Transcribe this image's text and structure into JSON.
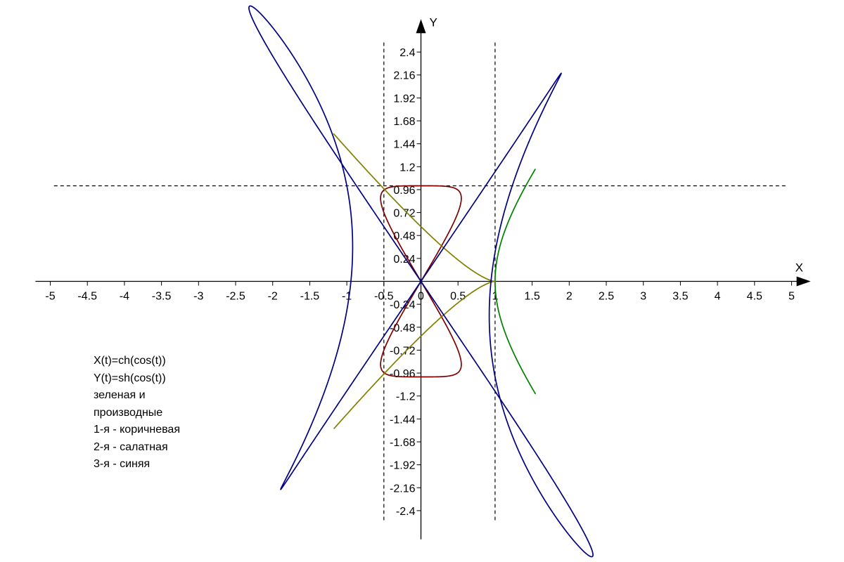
{
  "chart_data": {
    "type": "line",
    "x_axis_label": "X",
    "y_axis_label": "Y",
    "x_ticks": [
      -5,
      -4.5,
      -4,
      -3.5,
      -3,
      -2.5,
      -2,
      -1.5,
      -1,
      -0.5,
      0,
      0.5,
      1,
      1.5,
      2,
      2.5,
      3,
      3.5,
      4,
      4.5,
      5
    ],
    "x_tick_labels": [
      "-5",
      "-4.5",
      "-4",
      "-3.5",
      "-3",
      "-2.5",
      "-2",
      "-1.5",
      "-1",
      "-0.5",
      "0",
      "0.5",
      "1",
      "1.5",
      "2",
      "2.5",
      "3",
      "3.5",
      "4",
      "4.5",
      "5"
    ],
    "y_ticks": [
      -2.4,
      -2.16,
      -1.92,
      -1.68,
      -1.44,
      -1.2,
      -0.96,
      -0.72,
      -0.48,
      -0.24,
      0.24,
      0.48,
      0.72,
      0.96,
      1.2,
      1.44,
      1.68,
      1.92,
      2.16,
      2.4
    ],
    "y_tick_labels": [
      "-2.4",
      "-2.16",
      "-1.92",
      "-1.68",
      "-1.44",
      "-1.2",
      "-0.96",
      "-0.72",
      "-0.48",
      "-0.24",
      "0.24",
      "0.48",
      "0.72",
      "0.96",
      "1.2",
      "1.44",
      "1.68",
      "1.92",
      "2.16",
      "2.4"
    ],
    "xlim": [
      -5.2,
      5.2
    ],
    "ylim": [
      -2.7,
      2.7
    ],
    "grid": false,
    "dashed_reference_lines": [
      {
        "orientation": "vertical",
        "value": -0.5
      },
      {
        "orientation": "vertical",
        "value": 1
      },
      {
        "orientation": "horizontal",
        "value": 1
      }
    ],
    "series": [
      {
        "key": "function",
        "color": "#008000",
        "expr_x": "cosh(cos(t))",
        "expr_y": "sinh(cos(t))"
      },
      {
        "key": "first_derivative",
        "color": "#800000",
        "expr_x": "-sin(t)*sinh(cos(t))",
        "expr_y": "-sin(t)*cosh(cos(t))"
      },
      {
        "key": "second_derivative",
        "color": "#808000",
        "expr_x": "sin(t)^2*cosh(cos(t)) - cos(t)*sinh(cos(t))",
        "expr_y": "sin(t)^2*sinh(cos(t)) - cos(t)*cosh(cos(t))"
      },
      {
        "key": "third_derivative",
        "color": "#000080",
        "expr_x": "3*sin(t)*cos(t)*sinh(cos(t)) + sin(t)*cosh(cos(t)) - sin(t)^3*sinh(cos(t))",
        "expr_y": "3*sin(t)*cos(t)*cosh(cos(t)) + sin(t)*sinh(cos(t)) - sin(t)^3*cosh(cos(t))"
      }
    ]
  },
  "legend": {
    "lines": [
      "X(t)=ch(cos(t))",
      "Y(t)=sh(cos(t))",
      "зеленая и",
      "производные",
      "1-я - коричневая",
      "2-я - салатная",
      "3-я - синяя"
    ]
  }
}
